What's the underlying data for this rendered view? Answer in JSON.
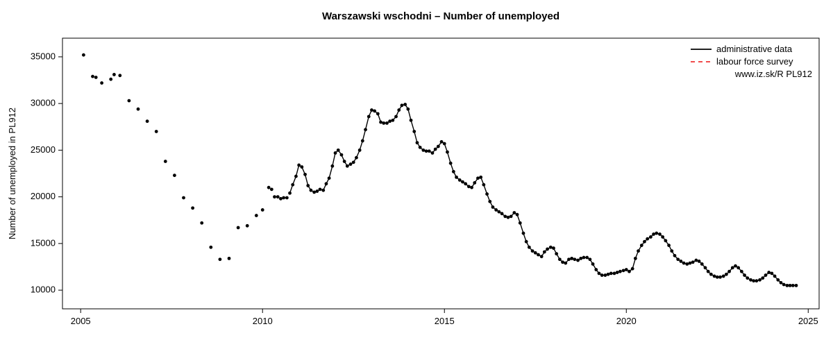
{
  "chart": {
    "type": "line-scatter",
    "title": "Warszawski wschodni – Number of unemployed",
    "title_fontsize": 15,
    "title_fontweight": "bold",
    "ylabel": "Number of unemployed in PL912",
    "label_fontsize": 13,
    "tick_fontsize": 13,
    "background_color": "#ffffff",
    "axis_color": "#000000",
    "point_color": "#000000",
    "line_color": "#000000",
    "point_radius": 2.4,
    "line_width": 1.4,
    "xlim": [
      2004.5,
      2025.3
    ],
    "ylim": [
      8000,
      37000
    ],
    "xticks": [
      2005,
      2010,
      2015,
      2020,
      2025
    ],
    "yticks": [
      10000,
      15000,
      20000,
      25000,
      30000,
      35000
    ],
    "legend": {
      "items": [
        {
          "label": "administrative data",
          "color": "#000000",
          "dash": null,
          "line_width": 1.8
        },
        {
          "label": "labour force survey",
          "color": "#ee3333",
          "dash": "6,5",
          "line_width": 1.8
        }
      ],
      "note": "www.iz.sk/R PL912"
    },
    "scatter_points": [
      {
        "x": 2005.08,
        "y": 35200
      },
      {
        "x": 2005.33,
        "y": 32900
      },
      {
        "x": 2005.42,
        "y": 32800
      },
      {
        "x": 2005.58,
        "y": 32200
      },
      {
        "x": 2005.83,
        "y": 32600
      },
      {
        "x": 2005.92,
        "y": 33100
      },
      {
        "x": 2006.08,
        "y": 33000
      },
      {
        "x": 2006.33,
        "y": 30300
      },
      {
        "x": 2006.58,
        "y": 29400
      },
      {
        "x": 2006.83,
        "y": 28100
      },
      {
        "x": 2007.08,
        "y": 27000
      },
      {
        "x": 2007.33,
        "y": 23800
      },
      {
        "x": 2007.58,
        "y": 22300
      },
      {
        "x": 2007.83,
        "y": 19900
      },
      {
        "x": 2008.08,
        "y": 18800
      },
      {
        "x": 2008.33,
        "y": 17200
      },
      {
        "x": 2008.58,
        "y": 14600
      },
      {
        "x": 2008.83,
        "y": 13300
      },
      {
        "x": 2009.08,
        "y": 13400
      },
      {
        "x": 2009.33,
        "y": 16700
      },
      {
        "x": 2009.58,
        "y": 16900
      },
      {
        "x": 2009.83,
        "y": 18000
      },
      {
        "x": 2010.0,
        "y": 18600
      },
      {
        "x": 2010.17,
        "y": 21000
      },
      {
        "x": 2010.25,
        "y": 20800
      },
      {
        "x": 2010.33,
        "y": 20000
      },
      {
        "x": 2010.42,
        "y": 20000
      },
      {
        "x": 2010.5,
        "y": 19800
      },
      {
        "x": 2010.58,
        "y": 19900
      },
      {
        "x": 2010.67,
        "y": 19900
      }
    ],
    "line_points": [
      {
        "x": 2010.75,
        "y": 20400
      },
      {
        "x": 2010.83,
        "y": 21300
      },
      {
        "x": 2010.92,
        "y": 22200
      },
      {
        "x": 2011.0,
        "y": 23400
      },
      {
        "x": 2011.08,
        "y": 23200
      },
      {
        "x": 2011.17,
        "y": 22400
      },
      {
        "x": 2011.25,
        "y": 21200
      },
      {
        "x": 2011.33,
        "y": 20700
      },
      {
        "x": 2011.42,
        "y": 20500
      },
      {
        "x": 2011.5,
        "y": 20600
      },
      {
        "x": 2011.58,
        "y": 20800
      },
      {
        "x": 2011.67,
        "y": 20700
      },
      {
        "x": 2011.75,
        "y": 21400
      },
      {
        "x": 2011.83,
        "y": 22000
      },
      {
        "x": 2011.92,
        "y": 23300
      },
      {
        "x": 2012.0,
        "y": 24700
      },
      {
        "x": 2012.08,
        "y": 25000
      },
      {
        "x": 2012.17,
        "y": 24500
      },
      {
        "x": 2012.25,
        "y": 23800
      },
      {
        "x": 2012.33,
        "y": 23300
      },
      {
        "x": 2012.42,
        "y": 23500
      },
      {
        "x": 2012.5,
        "y": 23700
      },
      {
        "x": 2012.58,
        "y": 24200
      },
      {
        "x": 2012.67,
        "y": 25000
      },
      {
        "x": 2012.75,
        "y": 26000
      },
      {
        "x": 2012.83,
        "y": 27200
      },
      {
        "x": 2012.92,
        "y": 28600
      },
      {
        "x": 2013.0,
        "y": 29300
      },
      {
        "x": 2013.08,
        "y": 29200
      },
      {
        "x": 2013.17,
        "y": 28900
      },
      {
        "x": 2013.25,
        "y": 28000
      },
      {
        "x": 2013.33,
        "y": 27900
      },
      {
        "x": 2013.42,
        "y": 27900
      },
      {
        "x": 2013.5,
        "y": 28100
      },
      {
        "x": 2013.58,
        "y": 28200
      },
      {
        "x": 2013.67,
        "y": 28600
      },
      {
        "x": 2013.75,
        "y": 29300
      },
      {
        "x": 2013.83,
        "y": 29800
      },
      {
        "x": 2013.92,
        "y": 29900
      },
      {
        "x": 2014.0,
        "y": 29400
      },
      {
        "x": 2014.08,
        "y": 28200
      },
      {
        "x": 2014.17,
        "y": 27000
      },
      {
        "x": 2014.25,
        "y": 25800
      },
      {
        "x": 2014.33,
        "y": 25300
      },
      {
        "x": 2014.42,
        "y": 25000
      },
      {
        "x": 2014.5,
        "y": 24900
      },
      {
        "x": 2014.58,
        "y": 24900
      },
      {
        "x": 2014.67,
        "y": 24700
      },
      {
        "x": 2014.75,
        "y": 25100
      },
      {
        "x": 2014.83,
        "y": 25400
      },
      {
        "x": 2014.92,
        "y": 25900
      },
      {
        "x": 2015.0,
        "y": 25700
      },
      {
        "x": 2015.08,
        "y": 24800
      },
      {
        "x": 2015.17,
        "y": 23600
      },
      {
        "x": 2015.25,
        "y": 22700
      },
      {
        "x": 2015.33,
        "y": 22100
      },
      {
        "x": 2015.42,
        "y": 21800
      },
      {
        "x": 2015.5,
        "y": 21600
      },
      {
        "x": 2015.58,
        "y": 21400
      },
      {
        "x": 2015.67,
        "y": 21100
      },
      {
        "x": 2015.75,
        "y": 21000
      },
      {
        "x": 2015.83,
        "y": 21500
      },
      {
        "x": 2015.92,
        "y": 22000
      },
      {
        "x": 2016.0,
        "y": 22100
      },
      {
        "x": 2016.08,
        "y": 21300
      },
      {
        "x": 2016.17,
        "y": 20300
      },
      {
        "x": 2016.25,
        "y": 19500
      },
      {
        "x": 2016.33,
        "y": 18900
      },
      {
        "x": 2016.42,
        "y": 18600
      },
      {
        "x": 2016.5,
        "y": 18400
      },
      {
        "x": 2016.58,
        "y": 18200
      },
      {
        "x": 2016.67,
        "y": 17900
      },
      {
        "x": 2016.75,
        "y": 17800
      },
      {
        "x": 2016.83,
        "y": 17900
      },
      {
        "x": 2016.92,
        "y": 18300
      },
      {
        "x": 2017.0,
        "y": 18100
      },
      {
        "x": 2017.08,
        "y": 17200
      },
      {
        "x": 2017.17,
        "y": 16100
      },
      {
        "x": 2017.25,
        "y": 15200
      },
      {
        "x": 2017.33,
        "y": 14600
      },
      {
        "x": 2017.42,
        "y": 14200
      },
      {
        "x": 2017.5,
        "y": 14000
      },
      {
        "x": 2017.58,
        "y": 13800
      },
      {
        "x": 2017.67,
        "y": 13600
      },
      {
        "x": 2017.75,
        "y": 14100
      },
      {
        "x": 2017.83,
        "y": 14400
      },
      {
        "x": 2017.92,
        "y": 14600
      },
      {
        "x": 2018.0,
        "y": 14500
      },
      {
        "x": 2018.08,
        "y": 13900
      },
      {
        "x": 2018.17,
        "y": 13300
      },
      {
        "x": 2018.25,
        "y": 13000
      },
      {
        "x": 2018.33,
        "y": 12900
      },
      {
        "x": 2018.42,
        "y": 13300
      },
      {
        "x": 2018.5,
        "y": 13400
      },
      {
        "x": 2018.58,
        "y": 13300
      },
      {
        "x": 2018.67,
        "y": 13200
      },
      {
        "x": 2018.75,
        "y": 13400
      },
      {
        "x": 2018.83,
        "y": 13500
      },
      {
        "x": 2018.92,
        "y": 13500
      },
      {
        "x": 2019.0,
        "y": 13300
      },
      {
        "x": 2019.08,
        "y": 12800
      },
      {
        "x": 2019.17,
        "y": 12200
      },
      {
        "x": 2019.25,
        "y": 11800
      },
      {
        "x": 2019.33,
        "y": 11600
      },
      {
        "x": 2019.42,
        "y": 11600
      },
      {
        "x": 2019.5,
        "y": 11700
      },
      {
        "x": 2019.58,
        "y": 11800
      },
      {
        "x": 2019.67,
        "y": 11800
      },
      {
        "x": 2019.75,
        "y": 11900
      },
      {
        "x": 2019.83,
        "y": 12000
      },
      {
        "x": 2019.92,
        "y": 12100
      },
      {
        "x": 2020.0,
        "y": 12200
      },
      {
        "x": 2020.08,
        "y": 12000
      },
      {
        "x": 2020.17,
        "y": 12300
      },
      {
        "x": 2020.25,
        "y": 13400
      },
      {
        "x": 2020.33,
        "y": 14200
      },
      {
        "x": 2020.42,
        "y": 14800
      },
      {
        "x": 2020.5,
        "y": 15200
      },
      {
        "x": 2020.58,
        "y": 15500
      },
      {
        "x": 2020.67,
        "y": 15700
      },
      {
        "x": 2020.75,
        "y": 16000
      },
      {
        "x": 2020.83,
        "y": 16100
      },
      {
        "x": 2020.92,
        "y": 16000
      },
      {
        "x": 2021.0,
        "y": 15700
      },
      {
        "x": 2021.08,
        "y": 15300
      },
      {
        "x": 2021.17,
        "y": 14800
      },
      {
        "x": 2021.25,
        "y": 14200
      },
      {
        "x": 2021.33,
        "y": 13700
      },
      {
        "x": 2021.42,
        "y": 13300
      },
      {
        "x": 2021.5,
        "y": 13100
      },
      {
        "x": 2021.58,
        "y": 12900
      },
      {
        "x": 2021.67,
        "y": 12800
      },
      {
        "x": 2021.75,
        "y": 12900
      },
      {
        "x": 2021.83,
        "y": 13000
      },
      {
        "x": 2021.92,
        "y": 13200
      },
      {
        "x": 2022.0,
        "y": 13100
      },
      {
        "x": 2022.08,
        "y": 12800
      },
      {
        "x": 2022.17,
        "y": 12400
      },
      {
        "x": 2022.25,
        "y": 12000
      },
      {
        "x": 2022.33,
        "y": 11700
      },
      {
        "x": 2022.42,
        "y": 11500
      },
      {
        "x": 2022.5,
        "y": 11400
      },
      {
        "x": 2022.58,
        "y": 11400
      },
      {
        "x": 2022.67,
        "y": 11500
      },
      {
        "x": 2022.75,
        "y": 11700
      },
      {
        "x": 2022.83,
        "y": 12000
      },
      {
        "x": 2022.92,
        "y": 12400
      },
      {
        "x": 2023.0,
        "y": 12600
      },
      {
        "x": 2023.08,
        "y": 12400
      },
      {
        "x": 2023.17,
        "y": 12000
      },
      {
        "x": 2023.25,
        "y": 11600
      },
      {
        "x": 2023.33,
        "y": 11300
      },
      {
        "x": 2023.42,
        "y": 11100
      },
      {
        "x": 2023.5,
        "y": 11000
      },
      {
        "x": 2023.58,
        "y": 11000
      },
      {
        "x": 2023.67,
        "y": 11100
      },
      {
        "x": 2023.75,
        "y": 11300
      },
      {
        "x": 2023.83,
        "y": 11600
      },
      {
        "x": 2023.92,
        "y": 11900
      },
      {
        "x": 2024.0,
        "y": 11800
      },
      {
        "x": 2024.08,
        "y": 11500
      },
      {
        "x": 2024.17,
        "y": 11100
      },
      {
        "x": 2024.25,
        "y": 10800
      },
      {
        "x": 2024.33,
        "y": 10600
      },
      {
        "x": 2024.42,
        "y": 10500
      },
      {
        "x": 2024.5,
        "y": 10500
      },
      {
        "x": 2024.58,
        "y": 10500
      },
      {
        "x": 2024.67,
        "y": 10500
      }
    ]
  }
}
